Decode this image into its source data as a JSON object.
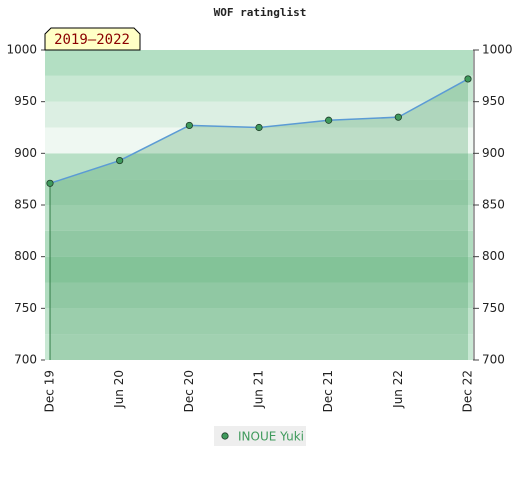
{
  "chart_data": {
    "type": "line",
    "title": "WOF ratinglist",
    "annotation": "2019–2022",
    "categories": [
      "Dec 19",
      "Jun 20",
      "Dec 20",
      "Jun 21",
      "Dec 21",
      "Jun 22",
      "Dec 22"
    ],
    "series": [
      {
        "name": "INOUE Yuki",
        "color": "#5b9bd5",
        "marker_color": "#3f9a5c",
        "values": [
          871,
          893,
          927,
          925,
          932,
          935,
          972
        ]
      }
    ],
    "ylim": [
      700,
      1000
    ],
    "yticks": [
      700,
      750,
      800,
      850,
      900,
      950,
      1000
    ],
    "y2lim": [
      700,
      1000
    ],
    "y2ticks": [
      700,
      750,
      800,
      850,
      900,
      950,
      1000
    ],
    "area": true,
    "legend": "bottom"
  }
}
